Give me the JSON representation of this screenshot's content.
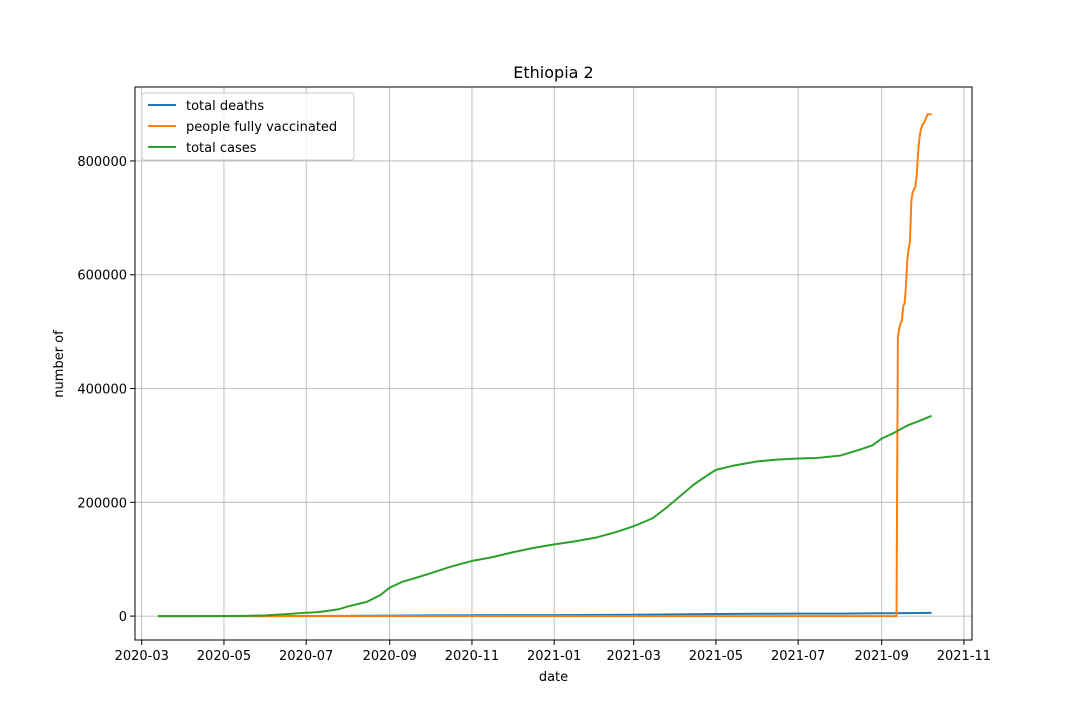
{
  "chart_data": {
    "type": "line",
    "title": "Ethiopia 2",
    "xlabel": "date",
    "ylabel": "number of",
    "xlim": [
      "2020-02-25",
      "2021-11-07"
    ],
    "ylim": [
      -42000,
      930000
    ],
    "x_ticks": [
      "2020-03",
      "2020-05",
      "2020-07",
      "2020-09",
      "2020-11",
      "2021-01",
      "2021-03",
      "2021-05",
      "2021-07",
      "2021-09",
      "2021-11"
    ],
    "y_ticks": [
      0,
      200000,
      400000,
      600000,
      800000
    ],
    "y_tick_labels": [
      "0",
      "200000",
      "400000",
      "600000",
      "800000"
    ],
    "grid": true,
    "legend_position": "top-left",
    "series": [
      {
        "name": "total deaths",
        "color": "#1f77b4",
        "points": [
          [
            "2020-03-13",
            0
          ],
          [
            "2020-05-01",
            3
          ],
          [
            "2020-06-01",
            5
          ],
          [
            "2020-07-01",
            100
          ],
          [
            "2020-08-01",
            300
          ],
          [
            "2020-09-01",
            900
          ],
          [
            "2020-10-01",
            1300
          ],
          [
            "2020-11-01",
            1500
          ],
          [
            "2021-01-01",
            1800
          ],
          [
            "2021-03-01",
            2300
          ],
          [
            "2021-04-01",
            3000
          ],
          [
            "2021-05-01",
            3800
          ],
          [
            "2021-06-01",
            4200
          ],
          [
            "2021-07-01",
            4350
          ],
          [
            "2021-08-01",
            4450
          ],
          [
            "2021-09-01",
            5000
          ],
          [
            "2021-10-08",
            5700
          ]
        ]
      },
      {
        "name": "people fully vaccinated",
        "color": "#ff7f0e",
        "points": [
          [
            "2020-03-13",
            0
          ],
          [
            "2021-09-12",
            0
          ],
          [
            "2021-09-13",
            490000
          ],
          [
            "2021-09-14",
            505000
          ],
          [
            "2021-09-15",
            515000
          ],
          [
            "2021-09-16",
            520000
          ],
          [
            "2021-09-17",
            545000
          ],
          [
            "2021-09-18",
            550000
          ],
          [
            "2021-09-19",
            580000
          ],
          [
            "2021-09-20",
            625000
          ],
          [
            "2021-09-21",
            645000
          ],
          [
            "2021-09-22",
            660000
          ],
          [
            "2021-09-23",
            730000
          ],
          [
            "2021-09-24",
            745000
          ],
          [
            "2021-09-26",
            755000
          ],
          [
            "2021-09-27",
            775000
          ],
          [
            "2021-09-28",
            815000
          ],
          [
            "2021-09-29",
            840000
          ],
          [
            "2021-09-30",
            855000
          ],
          [
            "2021-10-01",
            862000
          ],
          [
            "2021-10-03",
            870000
          ],
          [
            "2021-10-05",
            882000
          ],
          [
            "2021-10-08",
            882000
          ]
        ]
      },
      {
        "name": "total cases",
        "color": "#2ca02c",
        "points": [
          [
            "2020-03-13",
            1
          ],
          [
            "2020-04-01",
            30
          ],
          [
            "2020-05-01",
            130
          ],
          [
            "2020-05-15",
            350
          ],
          [
            "2020-06-01",
            1200
          ],
          [
            "2020-06-15",
            3300
          ],
          [
            "2020-07-01",
            6000
          ],
          [
            "2020-07-07",
            6500
          ],
          [
            "2020-07-15",
            8500
          ],
          [
            "2020-07-25",
            12000
          ],
          [
            "2020-08-01",
            17000
          ],
          [
            "2020-08-15",
            25000
          ],
          [
            "2020-08-25",
            37000
          ],
          [
            "2020-09-01",
            50000
          ],
          [
            "2020-09-10",
            60000
          ],
          [
            "2020-09-20",
            67000
          ],
          [
            "2020-10-01",
            75000
          ],
          [
            "2020-10-15",
            86000
          ],
          [
            "2020-11-01",
            97000
          ],
          [
            "2020-11-15",
            103000
          ],
          [
            "2020-12-01",
            112000
          ],
          [
            "2020-12-15",
            119000
          ],
          [
            "2021-01-01",
            126000
          ],
          [
            "2021-01-15",
            131000
          ],
          [
            "2021-02-01",
            138000
          ],
          [
            "2021-02-15",
            147000
          ],
          [
            "2021-03-01",
            158000
          ],
          [
            "2021-03-15",
            172000
          ],
          [
            "2021-03-25",
            190000
          ],
          [
            "2021-04-05",
            212000
          ],
          [
            "2021-04-15",
            232000
          ],
          [
            "2021-04-25",
            248000
          ],
          [
            "2021-05-01",
            257000
          ],
          [
            "2021-05-15",
            265000
          ],
          [
            "2021-06-01",
            272000
          ],
          [
            "2021-06-15",
            275000
          ],
          [
            "2021-07-01",
            277000
          ],
          [
            "2021-07-15",
            278000
          ],
          [
            "2021-08-01",
            282000
          ],
          [
            "2021-08-15",
            292000
          ],
          [
            "2021-08-25",
            300000
          ],
          [
            "2021-09-01",
            312000
          ],
          [
            "2021-09-10",
            322000
          ],
          [
            "2021-09-20",
            335000
          ],
          [
            "2021-10-01",
            345000
          ],
          [
            "2021-10-08",
            352000
          ]
        ]
      }
    ]
  }
}
